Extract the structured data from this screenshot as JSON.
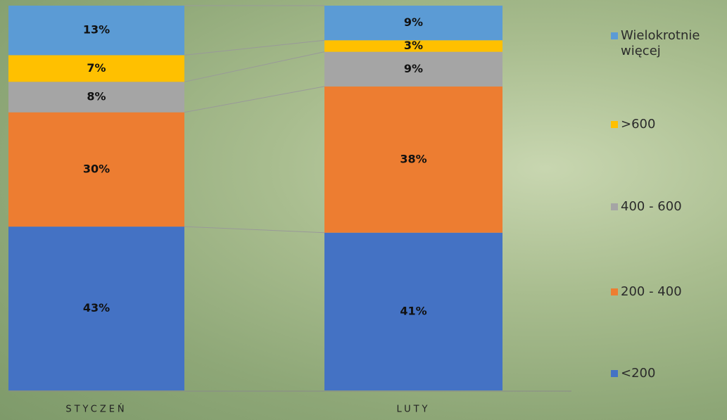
{
  "chart_data": {
    "type": "stacked_bar_100",
    "categories": [
      "STYCZEŃ",
      "LUTY"
    ],
    "series": [
      {
        "name": "<200",
        "color": "#4472c4",
        "values": [
          43,
          41
        ]
      },
      {
        "name": "200 - 400",
        "color": "#ed7d31",
        "values": [
          30,
          38
        ]
      },
      {
        "name": "400 - 600",
        "color": "#a5a5a5",
        "values": [
          8,
          9
        ]
      },
      {
        "name": ">600",
        "color": "#ffc000",
        "values": [
          7,
          3
        ]
      },
      {
        "name": "Wielokrotnie więcej",
        "color": "#5b9bd5",
        "values": [
          13,
          9
        ]
      }
    ],
    "value_labels": [
      [
        "43%",
        "41%"
      ],
      [
        "30%",
        "38%"
      ],
      [
        "8%",
        "9%"
      ],
      [
        "7%",
        "3%"
      ],
      [
        "13%",
        "9%"
      ]
    ],
    "legend": "right"
  }
}
